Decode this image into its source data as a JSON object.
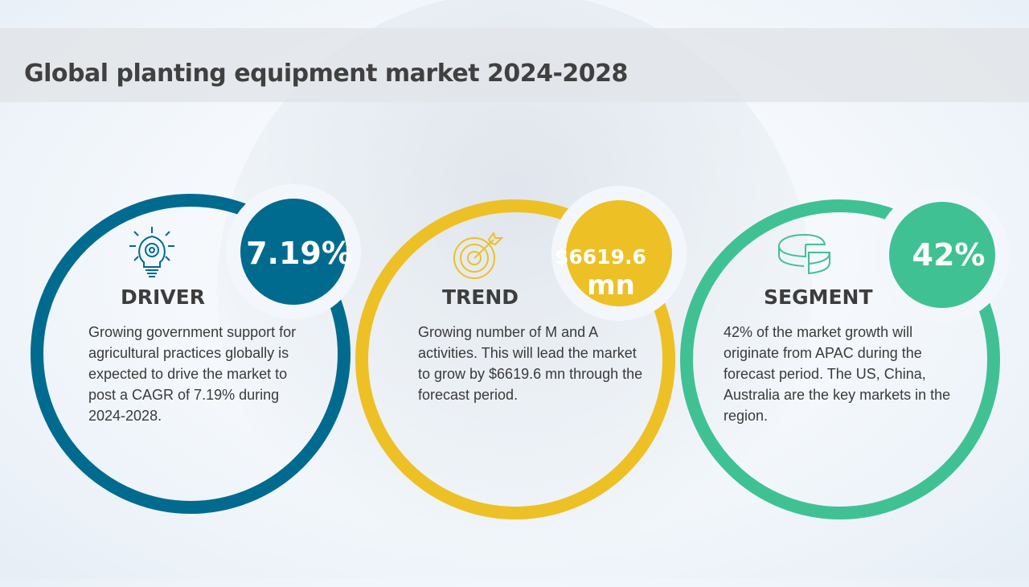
{
  "header": {
    "title": "Global planting equipment market 2024-2028"
  },
  "colors": {
    "driver": "#006b8f",
    "trend": "#edc026",
    "segment": "#40c194"
  },
  "cards": [
    {
      "icon": "lightbulb-gear-icon",
      "heading": "DRIVER",
      "badge": "7.19%",
      "text": "Growing government support for agricultural practices globally is expected to drive the market to post a CAGR of 7.19% during 2024-2028."
    },
    {
      "icon": "target-arrow-icon",
      "heading": "TREND",
      "badge_line1": "$6619.6",
      "badge_line2": "mn",
      "text": "Growing number of M and A activities. This will lead the market to grow by $6619.6 mn through the forecast period."
    },
    {
      "icon": "pie-chart-icon",
      "heading": "SEGMENT",
      "badge": "42%",
      "text": "42% of the market growth will originate from APAC during the forecast period. The US, China, Australia are the key markets in the region."
    }
  ]
}
